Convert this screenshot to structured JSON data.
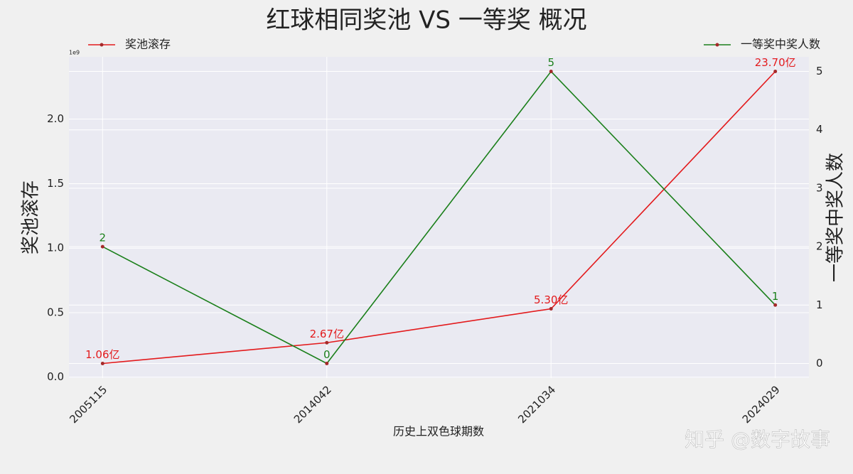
{
  "chart_data": {
    "type": "line",
    "title": "红球相同奖池 VS 一等奖 概况",
    "xlabel": "历史上双色球期数",
    "ylabel": "奖池滚存",
    "y2label": "一等奖中奖人数",
    "y_offset_label": "1e9",
    "watermark": "知乎 @数字故事",
    "categories": [
      "2005115",
      "2014042",
      "2021034",
      "2024029"
    ],
    "series": [
      {
        "name": "奖池滚存",
        "color": "#e31a1c",
        "values": [
          106000000,
          267000000,
          530000000,
          2370000000
        ],
        "value_labels": [
          "1.06亿",
          "2.67亿",
          "5.30亿",
          "23.70亿"
        ],
        "legend_loc": "upper left"
      },
      {
        "name": "一等奖中奖人数",
        "color": "#1a7f1a",
        "axis": "y2",
        "values": [
          2,
          0,
          5,
          1
        ],
        "legend_loc": "upper right"
      }
    ],
    "ylim": [
      -7000000,
      2483000000
    ],
    "yticks": [
      {
        "value": 0,
        "label": "0.0"
      },
      {
        "value": 500000000,
        "label": "0.5"
      },
      {
        "value": 1000000000,
        "label": "1.0"
      },
      {
        "value": 1500000000,
        "label": "1.5"
      },
      {
        "value": 2000000000,
        "label": "2.0"
      }
    ],
    "y2lim": [
      -0.25,
      5.25
    ],
    "y2ticks": [
      0,
      1,
      2,
      3,
      4,
      5
    ],
    "grid": true,
    "marker_color": "#a52a2a"
  }
}
